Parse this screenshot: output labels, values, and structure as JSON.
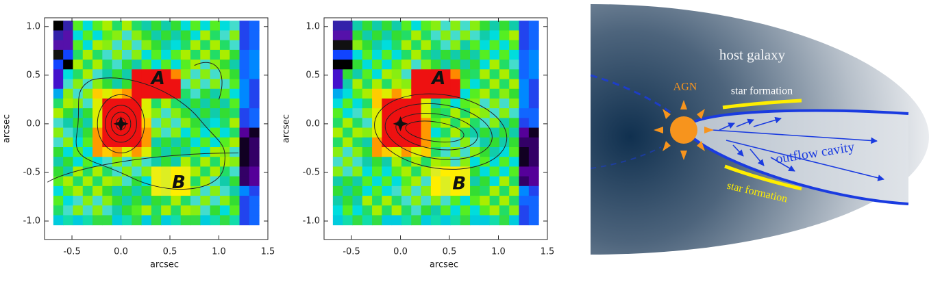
{
  "panels": [
    {
      "xlabel": "arcsec",
      "ylabel": "arcsec",
      "xlim": [
        -0.78,
        1.5
      ],
      "ylim": [
        -1.19,
        1.09
      ],
      "xticks": [
        {
          "value": -0.5,
          "label": "-0.5"
        },
        {
          "value": 0,
          "label": "0.0"
        },
        {
          "value": 0.5,
          "label": "0.5"
        },
        {
          "value": 1,
          "label": "1.0"
        },
        {
          "value": 1.5,
          "label": "1.5"
        }
      ],
      "yticks": [
        {
          "value": 1,
          "label": "1.0"
        },
        {
          "value": 0.5,
          "label": "0.5"
        },
        {
          "value": 0,
          "label": "0.0"
        },
        {
          "value": -0.5,
          "label": "-0.5"
        },
        {
          "value": -1,
          "label": "-1.0"
        }
      ],
      "regions": [
        "A",
        "B"
      ]
    },
    {
      "xlabel": "arcsec",
      "ylabel": "arcsec",
      "xlim": [
        -0.78,
        1.5
      ],
      "ylim": [
        -1.19,
        1.09
      ],
      "xticks": [
        {
          "value": -0.5,
          "label": "-0.5"
        },
        {
          "value": 0,
          "label": "0.0"
        },
        {
          "value": 0.5,
          "label": "0.5"
        },
        {
          "value": 1,
          "label": "1.0"
        },
        {
          "value": 1.5,
          "label": "1.5"
        }
      ],
      "yticks": [
        {
          "value": 1,
          "label": "1.0"
        },
        {
          "value": 0.5,
          "label": "0.5"
        },
        {
          "value": 0,
          "label": "0.0"
        },
        {
          "value": -0.5,
          "label": "-0.5"
        },
        {
          "value": -1,
          "label": "-1.0"
        }
      ],
      "regions": [
        "A",
        "B"
      ]
    }
  ],
  "diagram": {
    "host": "host galaxy",
    "agn": "AGN",
    "star_formation": [
      "star formation",
      "star formation"
    ],
    "cavity": "outflow cavity"
  }
}
